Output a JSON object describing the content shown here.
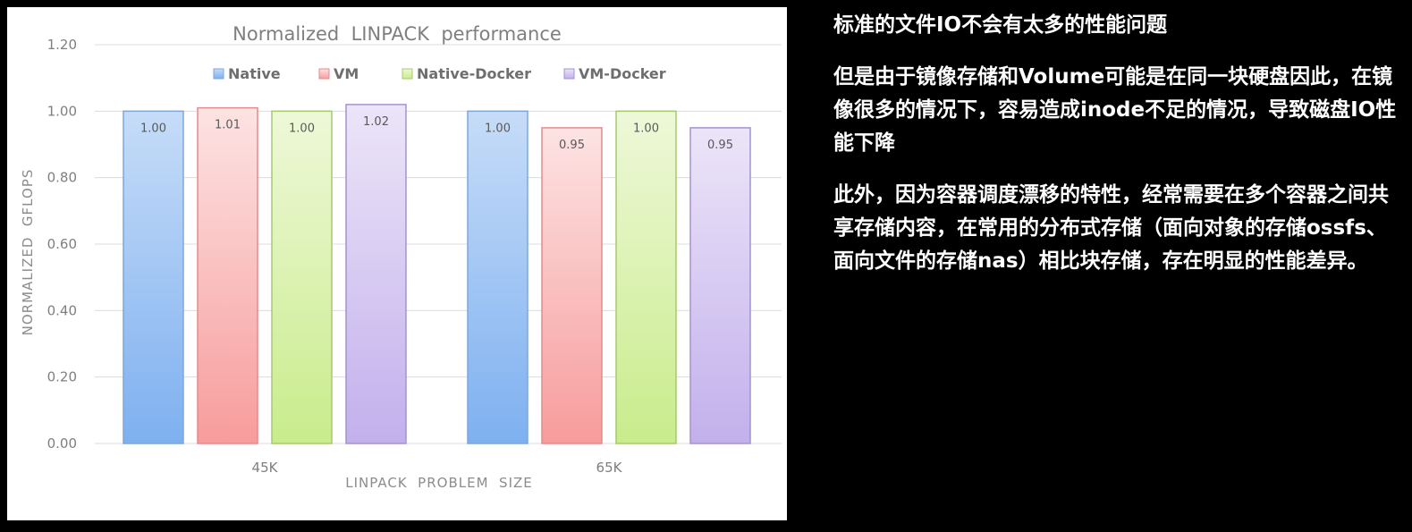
{
  "chart_data": {
    "type": "bar",
    "title": "Normalized  LINPACK  performance",
    "xlabel": "LINPACK  PROBLEM  SIZE",
    "ylabel": "NORMALIZED  GFLOPS",
    "categories": [
      "45K",
      "65K"
    ],
    "ylim": [
      0,
      1.2
    ],
    "yticks": [
      "0.00",
      "0.20",
      "0.40",
      "0.60",
      "0.80",
      "1.00",
      "1.20"
    ],
    "grid": true,
    "legend_position": "top",
    "series": [
      {
        "name": "Native",
        "values": [
          1.0,
          1.0
        ],
        "labels": [
          "1.00",
          "1.00"
        ],
        "fill_top": "#c6dcf8",
        "fill_bottom": "#7eb0f0",
        "stroke": "#7ea7d8"
      },
      {
        "name": "VM",
        "values": [
          1.01,
          0.95
        ],
        "labels": [
          "1.01",
          "0.95"
        ],
        "fill_top": "#fde3e3",
        "fill_bottom": "#f79c9c",
        "stroke": "#e38b8b"
      },
      {
        "name": "Native-Docker",
        "values": [
          1.0,
          1.0
        ],
        "labels": [
          "1.00",
          "1.00"
        ],
        "fill_top": "#eef8d8",
        "fill_bottom": "#c9ec8c",
        "stroke": "#a7c96e"
      },
      {
        "name": "VM-Docker",
        "values": [
          1.02,
          0.95
        ],
        "labels": [
          "1.02",
          "0.95"
        ],
        "fill_top": "#ece5f8",
        "fill_bottom": "#c2b0ec",
        "stroke": "#a592cf"
      }
    ]
  },
  "notes": {
    "p1": "标准的文件IO不会有太多的性能问题",
    "p2": "但是由于镜像存储和Volume可能是在同一块硬盘因此，在镜像很多的情况下，容易造成inode不足的情况，导致磁盘IO性能下降",
    "p3": "此外，因为容器调度漂移的特性，经常需要在多个容器之间共享存储内容，在常用的分布式存储（面向对象的存储ossfs、面向文件的存储nas）相比块存储，存在明显的性能差异。"
  }
}
